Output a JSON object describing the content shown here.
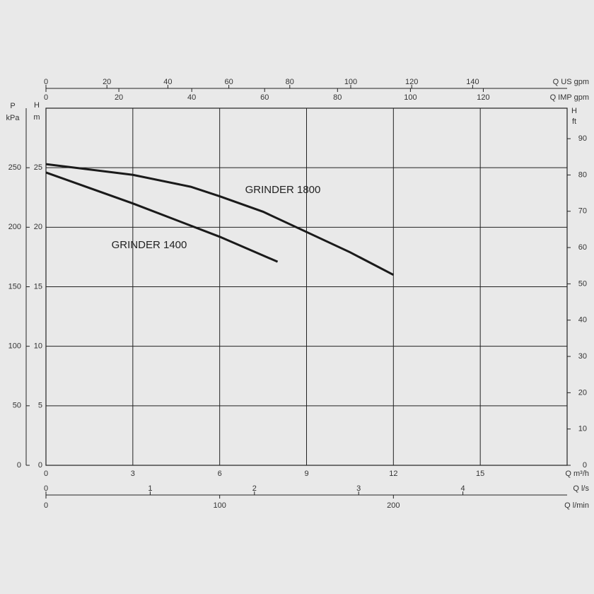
{
  "chart_data": {
    "type": "line",
    "series": [
      {
        "name": "GRINDER 1800",
        "color": "#1a1a1a",
        "x": [
          0,
          3,
          5,
          6,
          7.5,
          9,
          10.5,
          12
        ],
        "values": [
          25.3,
          24.4,
          23.4,
          22.6,
          21.3,
          19.6,
          17.9,
          16.0
        ]
      },
      {
        "name": "GRINDER 1400",
        "color": "#1a1a1a",
        "x": [
          0,
          3,
          6,
          8
        ],
        "values": [
          24.6,
          22.0,
          19.2,
          17.1
        ]
      }
    ],
    "xlabel": "Q m³/h",
    "xlim": [
      0,
      18
    ],
    "xticks": [
      0,
      3,
      6,
      9,
      12,
      15
    ],
    "ylabel": [
      "H",
      "m"
    ],
    "ylim": [
      0,
      30
    ],
    "yticks": [
      0,
      5,
      10,
      15,
      20,
      25
    ],
    "y2label": [
      "H",
      "ft"
    ],
    "y2lim": [
      0,
      98.4
    ],
    "y2ticks": [
      0,
      10,
      20,
      30,
      40,
      50,
      60,
      70,
      80,
      90
    ],
    "y3label": [
      "P",
      "kPa"
    ],
    "y3lim": [
      0,
      300
    ],
    "y3ticks": [
      0,
      50,
      100,
      150,
      200,
      250
    ],
    "x_axes": [
      {
        "label": "Q US gpm",
        "xlim": [
          0,
          171
        ],
        "xticks": [
          0,
          20,
          40,
          60,
          80,
          100,
          120,
          140
        ]
      },
      {
        "label": "Q IMP gpm",
        "xlim": [
          0,
          143
        ],
        "xticks": [
          0,
          20,
          40,
          60,
          80,
          100,
          120
        ]
      },
      {
        "label": "Q l/s",
        "xlim": [
          0,
          5
        ],
        "xticks": [
          0,
          1,
          2,
          3,
          4
        ]
      },
      {
        "label": "Q l/min",
        "xlim": [
          0,
          300
        ],
        "xticks": [
          0,
          100,
          200
        ]
      }
    ],
    "grid": true
  }
}
